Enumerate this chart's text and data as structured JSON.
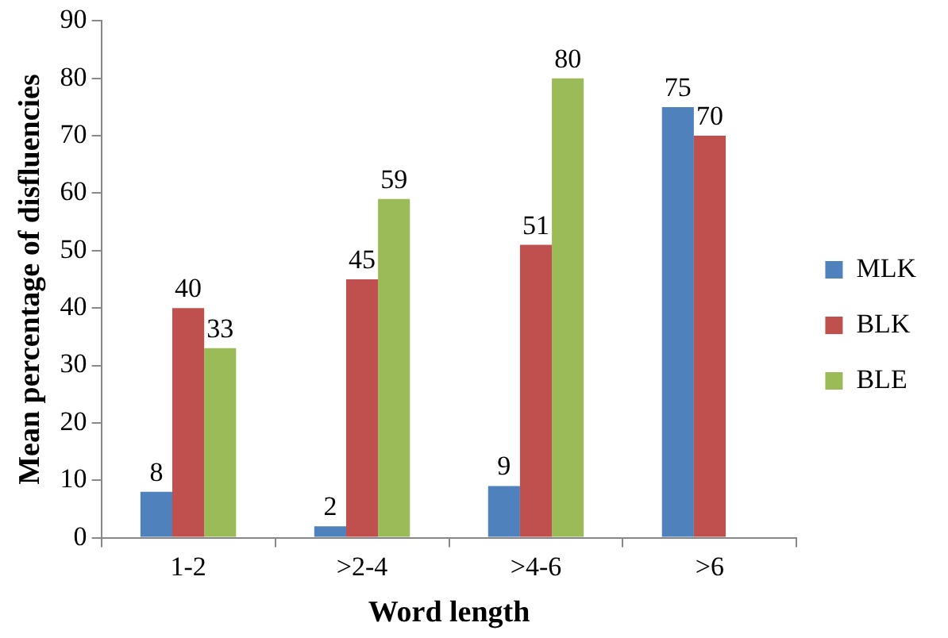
{
  "chart_data": {
    "type": "bar",
    "xlabel": "Word length",
    "ylabel": "Mean percentage of disfluencies",
    "categories": [
      "1-2",
      ">2-4",
      ">4-6",
      ">6"
    ],
    "series": [
      {
        "name": "MLK",
        "color": "#4f81bd",
        "values": [
          8,
          2,
          9,
          75
        ]
      },
      {
        "name": "BLK",
        "color": "#c0504d",
        "values": [
          40,
          45,
          51,
          70
        ]
      },
      {
        "name": "BLE",
        "color": "#9bbb59",
        "values": [
          33,
          59,
          80,
          null
        ]
      }
    ],
    "ylim": [
      0,
      90
    ],
    "yticks": [
      0,
      10,
      20,
      30,
      40,
      50,
      60,
      70,
      80,
      90
    ],
    "grid": false,
    "legend": "right",
    "data_labels": true
  }
}
